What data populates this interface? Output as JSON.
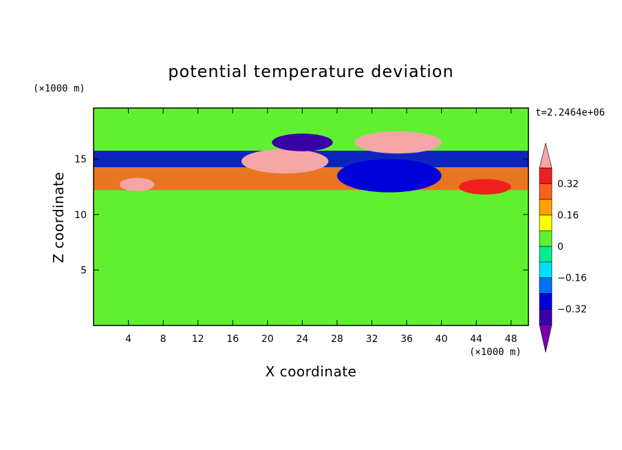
{
  "chart_data": {
    "type": "heatmap",
    "title": "potential temperature deviation",
    "xlabel": "X coordinate",
    "ylabel": "Z coordinate",
    "x_unit": "(×1000 m)",
    "y_unit": "(×1000 m)",
    "time_label": "t=2.2464e+06",
    "xlim": [
      0,
      50
    ],
    "ylim": [
      0,
      19.6
    ],
    "x_ticks": [
      4,
      8,
      12,
      16,
      20,
      24,
      28,
      32,
      36,
      40,
      44,
      48
    ],
    "x_tick_labels": [
      "4",
      "8",
      "12",
      "16",
      "20",
      "24",
      "28",
      "32",
      "36",
      "40",
      "44",
      "48"
    ],
    "y_ticks": [
      5,
      10,
      15
    ],
    "y_tick_labels": [
      "5",
      "10",
      "15"
    ],
    "colorbar": {
      "levels": [
        -0.4,
        -0.32,
        -0.24,
        -0.16,
        -0.08,
        0,
        0.08,
        0.16,
        0.24,
        0.32,
        0.4
      ],
      "labels": [
        "0.32",
        "0.16",
        "0",
        "−0.16",
        "−0.32"
      ],
      "label_values": [
        0.32,
        0.16,
        0,
        -0.16,
        -0.32
      ],
      "colors": [
        "#7a00b0",
        "#3a00a8",
        "#0000d8",
        "#0070ff",
        "#00e0ff",
        "#00ee90",
        "#60f030",
        "#ffff00",
        "#ffa000",
        "#ff6020",
        "#f02020",
        "#f4a6a6"
      ]
    },
    "features": [
      {
        "shape": "band",
        "z_center": 13.2,
        "z_width": 2.0,
        "value": 0.3
      },
      {
        "shape": "band",
        "z_center": 15.0,
        "z_width": 1.5,
        "value": -0.32
      },
      {
        "shape": "blob",
        "x": 22,
        "z": 14.8,
        "rx": 5.0,
        "rz": 1.1,
        "value": 0.4
      },
      {
        "shape": "blob",
        "x": 35,
        "z": 16.5,
        "rx": 5.0,
        "rz": 1.0,
        "value": 0.4
      },
      {
        "shape": "blob",
        "x": 24,
        "z": 16.5,
        "rx": 3.5,
        "rz": 0.8,
        "value": -0.4
      },
      {
        "shape": "blob",
        "x": 34,
        "z": 13.5,
        "rx": 6.0,
        "rz": 1.5,
        "value": -0.32
      },
      {
        "shape": "blob",
        "x": 5,
        "z": 12.7,
        "rx": 2.0,
        "rz": 0.6,
        "value": 0.4
      },
      {
        "shape": "blob",
        "x": 45,
        "z": 12.5,
        "rx": 3.0,
        "rz": 0.7,
        "value": 0.32
      }
    ]
  }
}
